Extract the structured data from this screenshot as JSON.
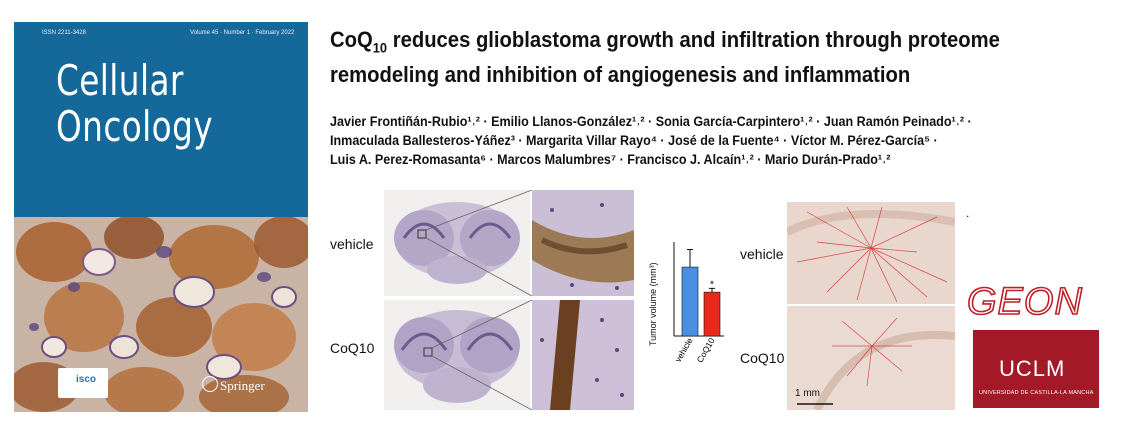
{
  "cover": {
    "issn": "ISSN 2211-3428",
    "issue": "Volume 45 · Number 1 · February 2022",
    "journal_line1": "Cellular",
    "journal_line2": "Oncology",
    "publisher": "Springer",
    "society_logo_text": "isco"
  },
  "paper": {
    "title_line1_prefix": "CoQ",
    "title_line1_sub": "10",
    "title_line1_rest": " reduces glioblastoma growth and infiltration through proteome",
    "title_line2": "remodeling and inhibition of angiogenesis and inflammation",
    "authors_line1": "Javier Frontiñán-Rubio¹˒² · Emilio Llanos-González¹˒² · Sonia García-Carpintero¹˒² · Juan Ramón Peinado¹˒² ·",
    "authors_line2": "Inmaculada Ballesteros-Yáñez³ · Margarita Villar Rayo⁴ · José de la Fuente⁴ · Víctor M. Pérez-García⁵ ·",
    "authors_line3": "Luis A. Perez-Romasanta⁶ · Marcos Malumbres⁷ · Francisco J. Alcaín¹˒² · Mario Durán-Prado¹˒²"
  },
  "figure": {
    "left_label_top": "vehicle",
    "left_label_bottom": "CoQ10",
    "right_label_top": "vehicle",
    "right_label_bottom": "CoQ10",
    "scale_bar": "1 mm",
    "dot": "."
  },
  "chart_data": {
    "type": "bar",
    "categories": [
      "vehicle",
      "CoQ10"
    ],
    "values": [
      1.1,
      0.7
    ],
    "errors": [
      0.28,
      0.06
    ],
    "ylabel": "Tumor volume (mm³)",
    "significance": [
      "",
      "*"
    ],
    "colors": [
      "#4a90e2",
      "#e8291c"
    ]
  },
  "logos": {
    "geon": "GEON",
    "uclm": "UCLM",
    "uclm_sub": "UNIVERSIDAD DE CASTILLA-LA MANCHA"
  }
}
